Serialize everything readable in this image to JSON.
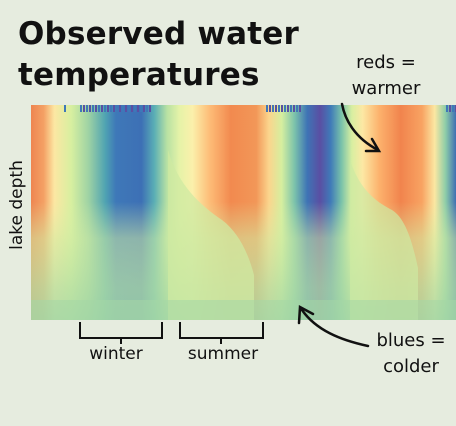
{
  "title": {
    "line1": "Observed water",
    "line2": "temperatures"
  },
  "annotations": {
    "warm": {
      "line1": "reds =",
      "line2": "warmer"
    },
    "cold": {
      "line1": "blues =",
      "line2": "colder"
    }
  },
  "ylabel": "lake depth",
  "seasons": [
    "winter",
    "summer"
  ],
  "colors": {
    "background": "#e6ecdf",
    "scale": [
      "#5a4fa3",
      "#3e78b8",
      "#4fa3b2",
      "#9fd3a4",
      "#d7efa0",
      "#fbf5b0",
      "#fdd387",
      "#f8a05c",
      "#ef7d4a"
    ]
  },
  "chart_data": {
    "type": "heatmap",
    "xlabel": "",
    "ylabel": "lake depth",
    "legend": "none",
    "grid": false,
    "color_meaning": {
      "reds": "warmer",
      "blues": "colder"
    }
  }
}
